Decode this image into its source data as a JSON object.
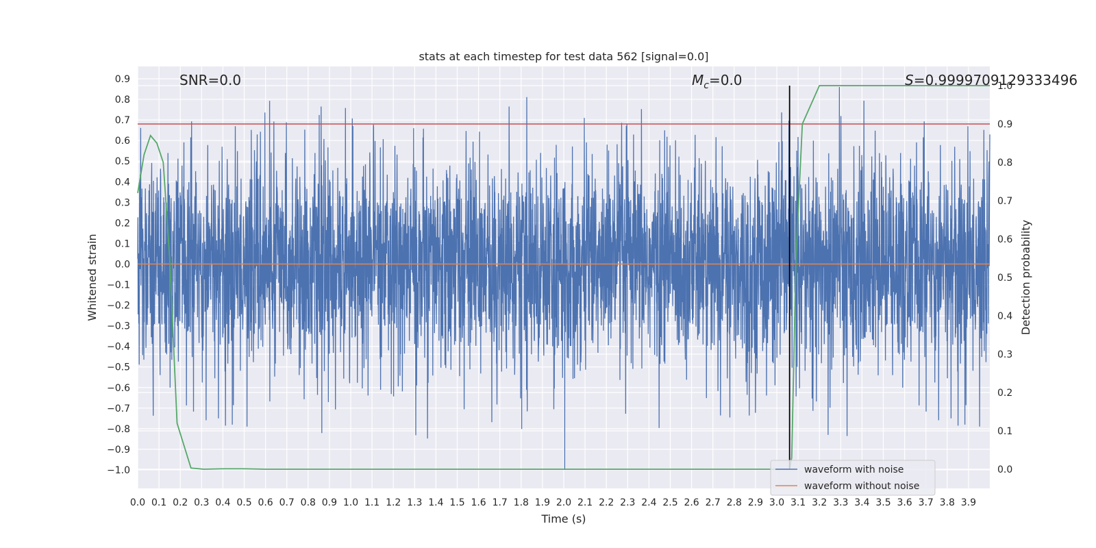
{
  "chart_data": {
    "type": "line",
    "title": "stats at each timestep for test data 562 [signal=0.0]",
    "xlabel": "Time (s)",
    "ylabel_left": "Whitened strain",
    "ylabel_right": "Detection probability",
    "xlim": [
      0.0,
      4.0
    ],
    "ylim_left": [
      -1.09,
      0.96
    ],
    "ylim_right": [
      -0.05,
      1.05
    ],
    "x_ticks": [
      "0.0",
      "0.1",
      "0.2",
      "0.3",
      "0.4",
      "0.5",
      "0.6",
      "0.7",
      "0.8",
      "0.9",
      "1.0",
      "1.1",
      "1.2",
      "1.3",
      "1.4",
      "1.5",
      "1.6",
      "1.7",
      "1.8",
      "1.9",
      "2.0",
      "2.1",
      "2.2",
      "2.3",
      "2.4",
      "2.5",
      "2.6",
      "2.7",
      "2.8",
      "2.9",
      "3.0",
      "3.1",
      "3.2",
      "3.3",
      "3.4",
      "3.5",
      "3.6",
      "3.7",
      "3.8",
      "3.9"
    ],
    "y_ticks_left": [
      "0.9",
      "0.8",
      "0.7",
      "0.6",
      "0.5",
      "0.4",
      "0.3",
      "0.2",
      "0.1",
      "0.0",
      "−0.1",
      "−0.2",
      "−0.3",
      "−0.4",
      "−0.5",
      "−0.6",
      "−0.7",
      "−0.8",
      "−0.9",
      "−1.0"
    ],
    "y_ticks_right": [
      "1.0",
      "0.9",
      "0.8",
      "0.7",
      "0.6",
      "0.5",
      "0.4",
      "0.3",
      "0.2",
      "0.1",
      "0.0"
    ],
    "annotations": {
      "snr": "SNR=0.0",
      "mc_symbol": "M",
      "mc_subscript": "c",
      "mc_value": "=0.0",
      "s_symbol": "S",
      "s_value": "=0.9999709129333496"
    },
    "series": [
      {
        "name": "waveform with noise",
        "axis": "left",
        "color": "#4c72b0",
        "kind": "noise",
        "x_range": [
          0.0,
          4.0
        ],
        "y_range_observed": [
          -1.0,
          0.87
        ]
      },
      {
        "name": "waveform without noise",
        "axis": "left",
        "color": "#dd8452",
        "x": [
          0.0,
          4.0
        ],
        "y": [
          0.0,
          0.0
        ]
      },
      {
        "axis": "right",
        "color": "#55a868",
        "x": [
          0.0,
          0.03,
          0.06,
          0.09,
          0.12,
          0.15,
          0.185,
          0.25,
          0.31,
          0.4,
          0.5,
          0.6,
          3.06,
          3.07,
          3.09,
          3.12,
          3.2,
          3.5,
          3.7,
          4.0
        ],
        "y": [
          0.72,
          0.82,
          0.87,
          0.85,
          0.8,
          0.55,
          0.12,
          0.003,
          0.0,
          0.001,
          0.001,
          0.0,
          0.0,
          0.03,
          0.55,
          0.9,
          1.0,
          1.0,
          1.0,
          1.0
        ]
      }
    ],
    "threshold_line": {
      "axis": "right",
      "y": 0.9,
      "color": "#c44e52"
    },
    "marker_line": {
      "x": 3.06,
      "color": "#000000",
      "y_top_right": 1.0,
      "y_bottom_right": 0.0
    },
    "legend": {
      "placement": "lower-right",
      "entries": [
        {
          "label": "waveform with noise",
          "color": "#4c72b0"
        },
        {
          "label": "waveform without noise",
          "color": "#dd8452"
        }
      ]
    },
    "grid": true,
    "style": {
      "axes_bg": "#eaeaf2",
      "grid_color": "#ffffff"
    }
  }
}
